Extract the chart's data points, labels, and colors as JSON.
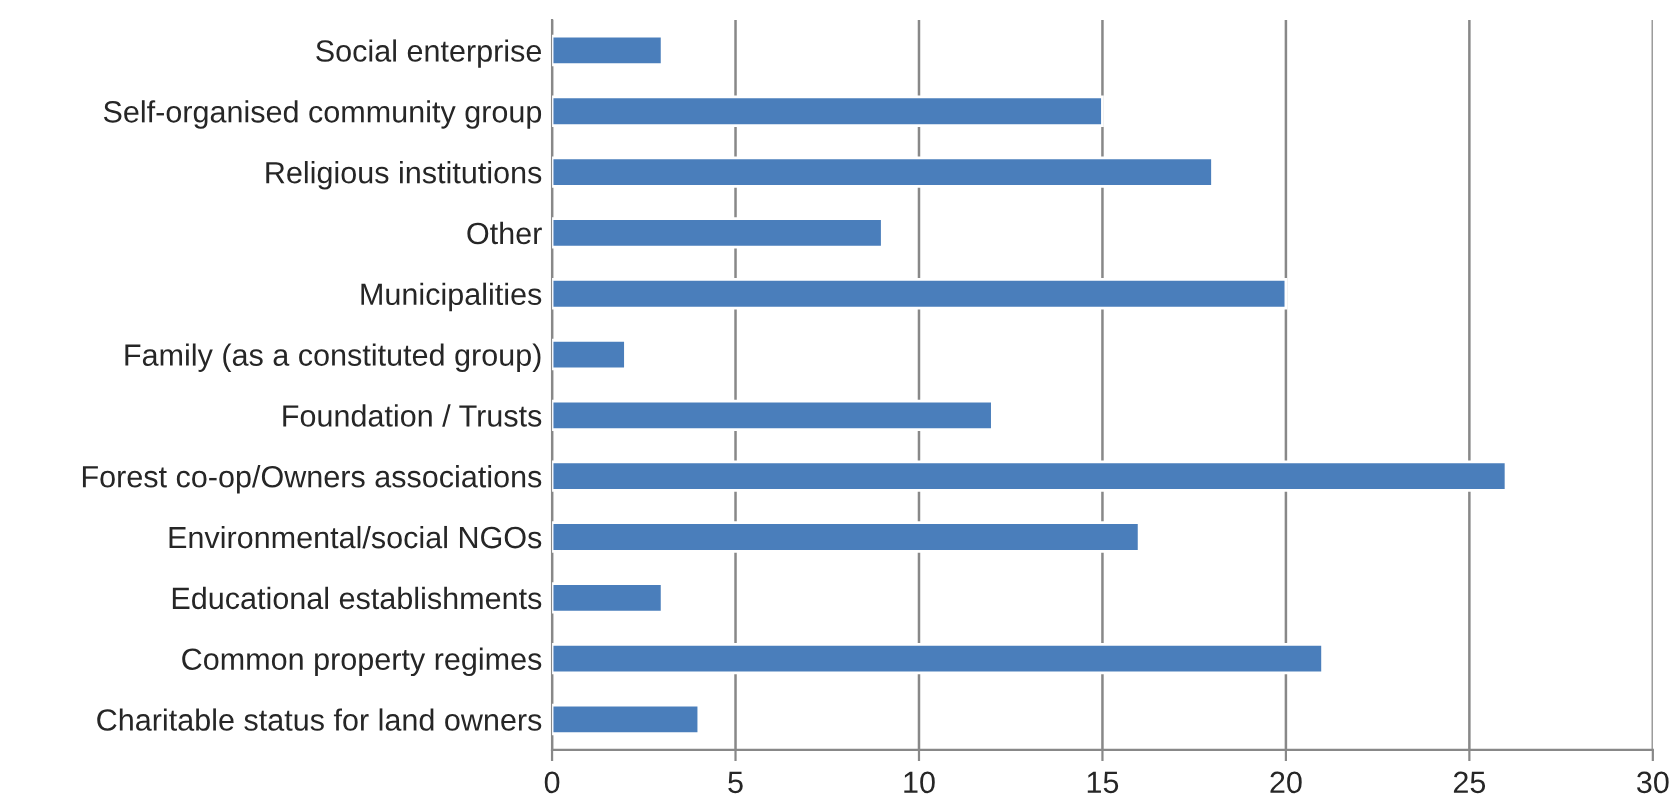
{
  "chart_data": {
    "type": "bar",
    "orientation": "horizontal",
    "categories": [
      "Social enterprise",
      "Self-organised community group",
      "Religious institutions",
      "Other",
      "Municipalities",
      "Family (as a constituted group)",
      "Foundation / Trusts",
      "Forest co-op/Owners associations",
      "Environmental/social NGOs",
      "Educational establishments",
      "Common property regimes",
      "Charitable status for land owners"
    ],
    "values": [
      3,
      15,
      18,
      9,
      20,
      2,
      12,
      26,
      16,
      3,
      21,
      4
    ],
    "color": "#4a7ebb",
    "xlim": [
      0,
      30
    ],
    "xticks": [
      0,
      5,
      10,
      15,
      20,
      25,
      30
    ],
    "grid": "x",
    "legend": false
  }
}
